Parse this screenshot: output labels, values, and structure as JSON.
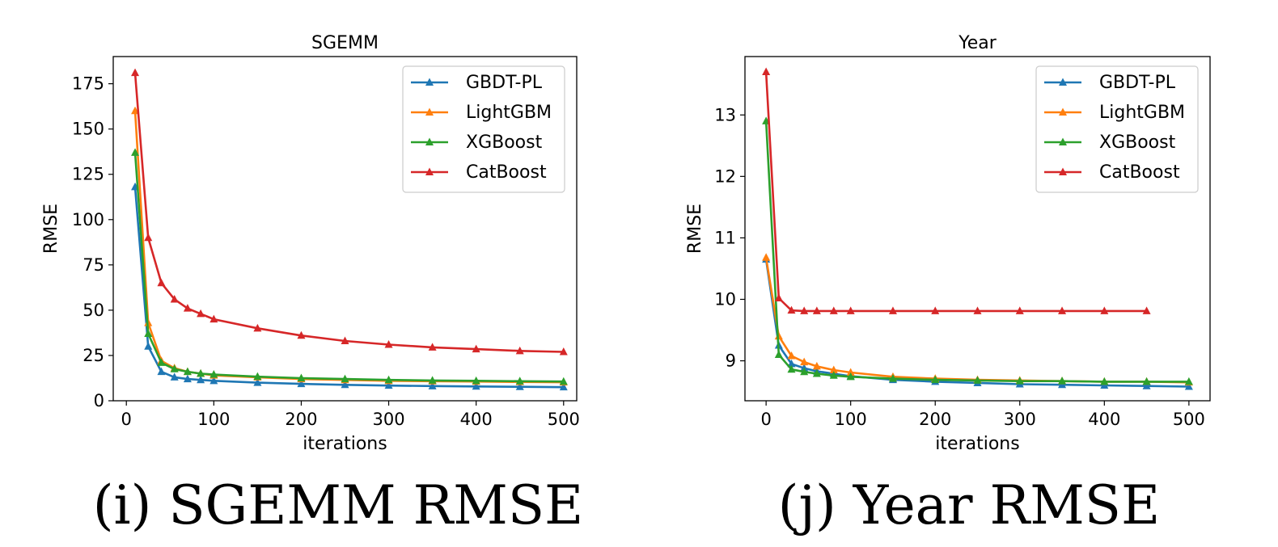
{
  "captions": [
    "(i) SGEMM RMSE",
    "(j) Year RMSE"
  ],
  "colors": {
    "GBDT-PL": "#1f77b4",
    "LightGBM": "#ff7f0e",
    "XGBoost": "#2ca02c",
    "CatBoost": "#d62728"
  },
  "chart_data": [
    {
      "type": "line",
      "title": "SGEMM",
      "xlabel": "iterations",
      "ylabel": "RMSE",
      "xlim": [
        -15,
        515
      ],
      "ylim": [
        0,
        190
      ],
      "xticks": [
        0,
        100,
        200,
        300,
        400,
        500
      ],
      "yticks": [
        0,
        25,
        50,
        75,
        100,
        125,
        150,
        175
      ],
      "grid": false,
      "legend_position": "top-right",
      "series": [
        {
          "name": "GBDT-PL",
          "x": [
            10,
            25,
            40,
            55,
            70,
            85,
            100,
            150,
            200,
            250,
            300,
            350,
            400,
            450,
            500
          ],
          "y": [
            118,
            30,
            16,
            13,
            12,
            11.5,
            11,
            10,
            9.3,
            8.8,
            8.4,
            8.1,
            7.9,
            7.7,
            7.5
          ]
        },
        {
          "name": "LightGBM",
          "x": [
            10,
            25,
            40,
            55,
            70,
            85,
            100,
            150,
            200,
            250,
            300,
            350,
            400,
            450,
            500
          ],
          "y": [
            160,
            43,
            22,
            18,
            16,
            15,
            14,
            13,
            12,
            11.5,
            11,
            10.8,
            10.6,
            10.4,
            10.2
          ]
        },
        {
          "name": "XGBoost",
          "x": [
            10,
            25,
            40,
            55,
            70,
            85,
            100,
            150,
            200,
            250,
            300,
            350,
            400,
            450,
            500
          ],
          "y": [
            137,
            37,
            21,
            17.5,
            16,
            15,
            14.5,
            13.3,
            12.5,
            12,
            11.5,
            11.2,
            11,
            10.8,
            10.6
          ]
        },
        {
          "name": "CatBoost",
          "x": [
            10,
            25,
            40,
            55,
            70,
            85,
            100,
            150,
            200,
            250,
            300,
            350,
            400,
            450,
            500
          ],
          "y": [
            181,
            90,
            65,
            56,
            51,
            48,
            45,
            40,
            36,
            33,
            31,
            29.5,
            28.5,
            27.5,
            27
          ]
        }
      ]
    },
    {
      "type": "line",
      "title": "Year",
      "xlabel": "iterations",
      "ylabel": "RMSE",
      "xlim": [
        -25,
        525
      ],
      "ylim": [
        8.35,
        13.95
      ],
      "xticks": [
        0,
        100,
        200,
        300,
        400,
        500
      ],
      "yticks": [
        9,
        10,
        11,
        12,
        13
      ],
      "grid": false,
      "legend_position": "top-right",
      "series": [
        {
          "name": "GBDT-PL",
          "x": [
            0,
            15,
            30,
            45,
            60,
            80,
            100,
            150,
            200,
            250,
            300,
            350,
            400,
            450,
            500
          ],
          "y": [
            10.65,
            9.25,
            8.95,
            8.88,
            8.83,
            8.79,
            8.75,
            8.69,
            8.66,
            8.64,
            8.62,
            8.61,
            8.6,
            8.59,
            8.58
          ]
        },
        {
          "name": "LightGBM",
          "x": [
            0,
            15,
            30,
            45,
            60,
            80,
            100,
            150,
            200,
            250,
            300,
            350,
            400,
            450,
            500
          ],
          "y": [
            10.68,
            9.4,
            9.08,
            8.98,
            8.91,
            8.85,
            8.81,
            8.74,
            8.71,
            8.69,
            8.68,
            8.67,
            8.66,
            8.66,
            8.65
          ]
        },
        {
          "name": "XGBoost",
          "x": [
            0,
            15,
            30,
            45,
            60,
            80,
            100,
            150,
            200,
            250,
            300,
            350,
            400,
            450,
            500
          ],
          "y": [
            12.9,
            9.1,
            8.86,
            8.82,
            8.79,
            8.76,
            8.74,
            8.71,
            8.69,
            8.68,
            8.67,
            8.67,
            8.66,
            8.66,
            8.66
          ]
        },
        {
          "name": "CatBoost",
          "x": [
            0,
            15,
            30,
            45,
            60,
            80,
            100,
            150,
            200,
            250,
            300,
            350,
            400,
            450
          ],
          "y": [
            13.7,
            10.02,
            9.82,
            9.81,
            9.81,
            9.81,
            9.81,
            9.81,
            9.81,
            9.81,
            9.81,
            9.81,
            9.81,
            9.81
          ]
        }
      ]
    }
  ]
}
